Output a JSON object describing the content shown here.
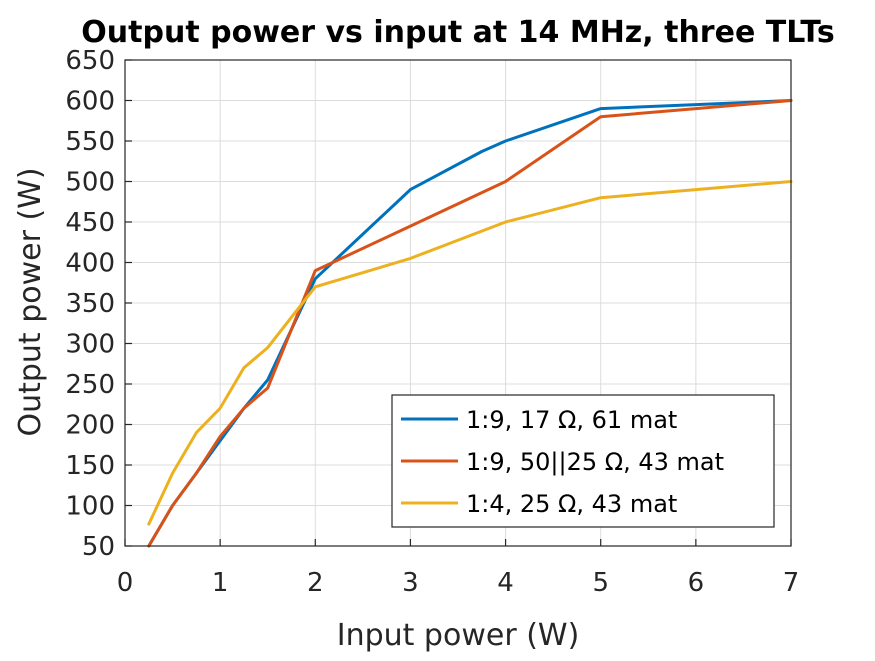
{
  "chart_data": {
    "type": "line",
    "title": "Output power vs input at 14 MHz, three TLTs",
    "xlabel": "Input power (W)",
    "ylabel": "Output power (W)",
    "x_tick_values": [
      0,
      1,
      2,
      3,
      4,
      5,
      6,
      7
    ],
    "x_tick_labels": [
      "0",
      "1",
      "2",
      "3",
      "4",
      "5",
      "6",
      "7"
    ],
    "y_tick_values": [
      50,
      100,
      150,
      200,
      250,
      300,
      350,
      400,
      450,
      500,
      550,
      600,
      650
    ],
    "y_tick_labels": [
      "50",
      "100",
      "150",
      "200",
      "250",
      "300",
      "350",
      "400",
      "450",
      "500",
      "550",
      "600",
      "650"
    ],
    "grid": true,
    "legend_position": "bottom-right",
    "series": [
      {
        "name": "1:9, 17 Ω, 61 mat",
        "color": "#0072BD",
        "x": [
          0.25,
          0.5,
          0.75,
          1,
          1.25,
          1.5,
          2,
          3,
          3.75,
          4,
          5,
          6,
          7
        ],
        "y": [
          50,
          100,
          140,
          180,
          220,
          255,
          380,
          490,
          537,
          550,
          590,
          595,
          600
        ]
      },
      {
        "name": "1:9, 50||25 Ω, 43 mat",
        "color": "#D95319",
        "x": [
          0.25,
          0.5,
          0.75,
          1,
          1.25,
          1.5,
          2,
          3,
          4,
          5,
          6,
          7
        ],
        "y": [
          50,
          100,
          140,
          185,
          220,
          245,
          390,
          445,
          500,
          580,
          590,
          600
        ]
      },
      {
        "name": "1:4, 25 Ω, 43 mat",
        "color": "#EDB120",
        "x": [
          0.25,
          0.5,
          0.75,
          1,
          1.25,
          1.5,
          2,
          3,
          4,
          5,
          6,
          7
        ],
        "y": [
          77,
          140,
          190,
          220,
          270,
          295,
          370,
          405,
          450,
          480,
          490,
          500
        ]
      }
    ]
  }
}
